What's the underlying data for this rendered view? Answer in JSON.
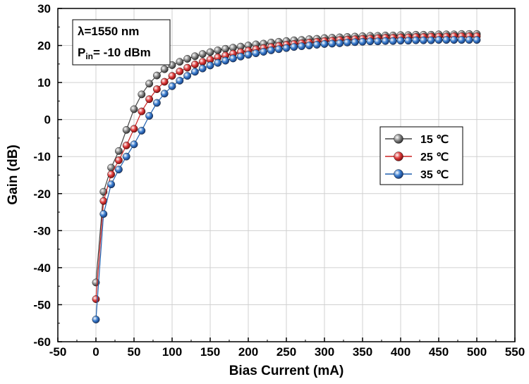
{
  "chart_data": {
    "type": "line",
    "xlabel": "Bias Current (mA)",
    "ylabel": "Gain (dB)",
    "xlim": [
      -50,
      550
    ],
    "ylim": [
      -60,
      30
    ],
    "xticks": [
      -50,
      0,
      50,
      100,
      150,
      200,
      250,
      300,
      350,
      400,
      450,
      500,
      550
    ],
    "yticks": [
      -60,
      -50,
      -40,
      -30,
      -20,
      -10,
      0,
      10,
      20,
      30
    ],
    "grid": true,
    "annotation": {
      "line1": "λ=1550 nm",
      "line2_prefix": "P",
      "line2_sub": "in",
      "line2_suffix": "= -10 dBm"
    },
    "legend_position": "right",
    "x": [
      0,
      10,
      20,
      30,
      40,
      50,
      60,
      70,
      80,
      90,
      100,
      110,
      120,
      130,
      140,
      150,
      160,
      170,
      180,
      190,
      200,
      210,
      220,
      230,
      240,
      250,
      260,
      270,
      280,
      290,
      300,
      310,
      320,
      330,
      340,
      350,
      360,
      370,
      380,
      390,
      400,
      410,
      420,
      430,
      440,
      450,
      460,
      470,
      480,
      490,
      500
    ],
    "series": [
      {
        "name": "15 ℃",
        "color": "#444444",
        "values": [
          -44,
          -19.5,
          -13,
          -8.5,
          -2.8,
          2.8,
          6.8,
          9.7,
          11.9,
          13.6,
          14.7,
          15.6,
          16.4,
          17.1,
          17.7,
          18.2,
          18.7,
          19.1,
          19.4,
          19.7,
          20,
          20.3,
          20.5,
          20.8,
          21,
          21.2,
          21.4,
          21.5,
          21.7,
          21.8,
          22,
          22.1,
          22.2,
          22.3,
          22.4,
          22.5,
          22.6,
          22.6,
          22.7,
          22.7,
          22.8,
          22.8,
          22.9,
          22.9,
          22.9,
          23,
          23,
          23,
          23.1,
          23.1,
          23.1
        ]
      },
      {
        "name": "25 ℃",
        "color": "#cc2222",
        "values": [
          -48.5,
          -22,
          -14.8,
          -11,
          -7,
          -2.5,
          2.2,
          5.5,
          8.2,
          10.2,
          11.8,
          13,
          14,
          14.9,
          15.6,
          16.2,
          16.8,
          17.3,
          17.8,
          18.2,
          18.6,
          19,
          19.3,
          19.6,
          19.9,
          20.2,
          20.4,
          20.6,
          20.8,
          21,
          21.2,
          21.3,
          21.5,
          21.6,
          21.7,
          21.8,
          21.9,
          22,
          22.1,
          22.1,
          22.2,
          22.2,
          22.3,
          22.3,
          22.4,
          22.4,
          22.4,
          22.5,
          22.5,
          22.5,
          22.5
        ]
      },
      {
        "name": "35 ℃",
        "color": "#1f5fae",
        "values": [
          -54,
          -25.5,
          -17.5,
          -13.5,
          -10,
          -6.7,
          -3,
          1,
          4.5,
          7,
          9,
          10.5,
          11.8,
          12.9,
          13.8,
          14.6,
          15.3,
          15.9,
          16.5,
          17,
          17.5,
          17.9,
          18.3,
          18.7,
          19,
          19.3,
          19.6,
          19.8,
          20,
          20.2,
          20.4,
          20.5,
          20.6,
          20.8,
          20.9,
          21,
          21.1,
          21.1,
          21.2,
          21.2,
          21.3,
          21.3,
          21.4,
          21.4,
          21.4,
          21.5,
          21.5,
          21.5,
          21.5,
          21.5,
          21.5
        ]
      }
    ]
  }
}
